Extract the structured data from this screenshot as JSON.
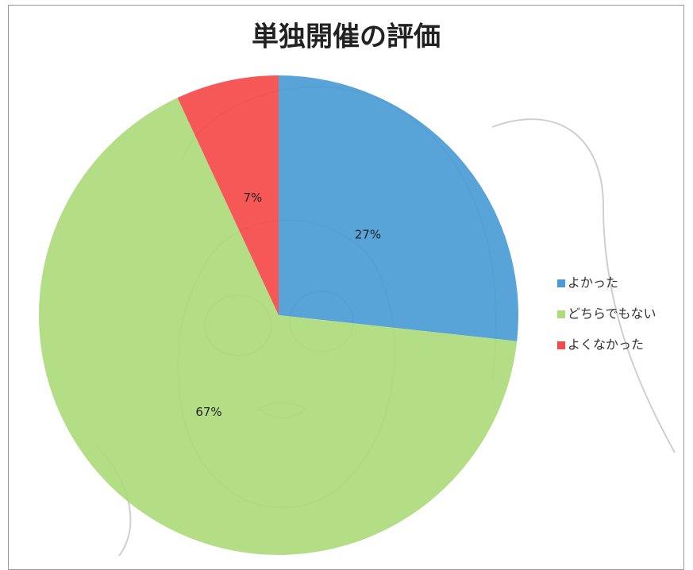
{
  "chart_data": {
    "type": "pie",
    "title": "単独開催の評価",
    "categories": [
      "よかった",
      "どちらでもない",
      "よくなかった"
    ],
    "values": [
      27,
      67,
      7
    ],
    "value_labels": [
      "27%",
      "67%",
      "7%"
    ],
    "colors": [
      "#4a9bd5",
      "#acdb7c",
      "#f54a4a"
    ],
    "legend": "right"
  }
}
